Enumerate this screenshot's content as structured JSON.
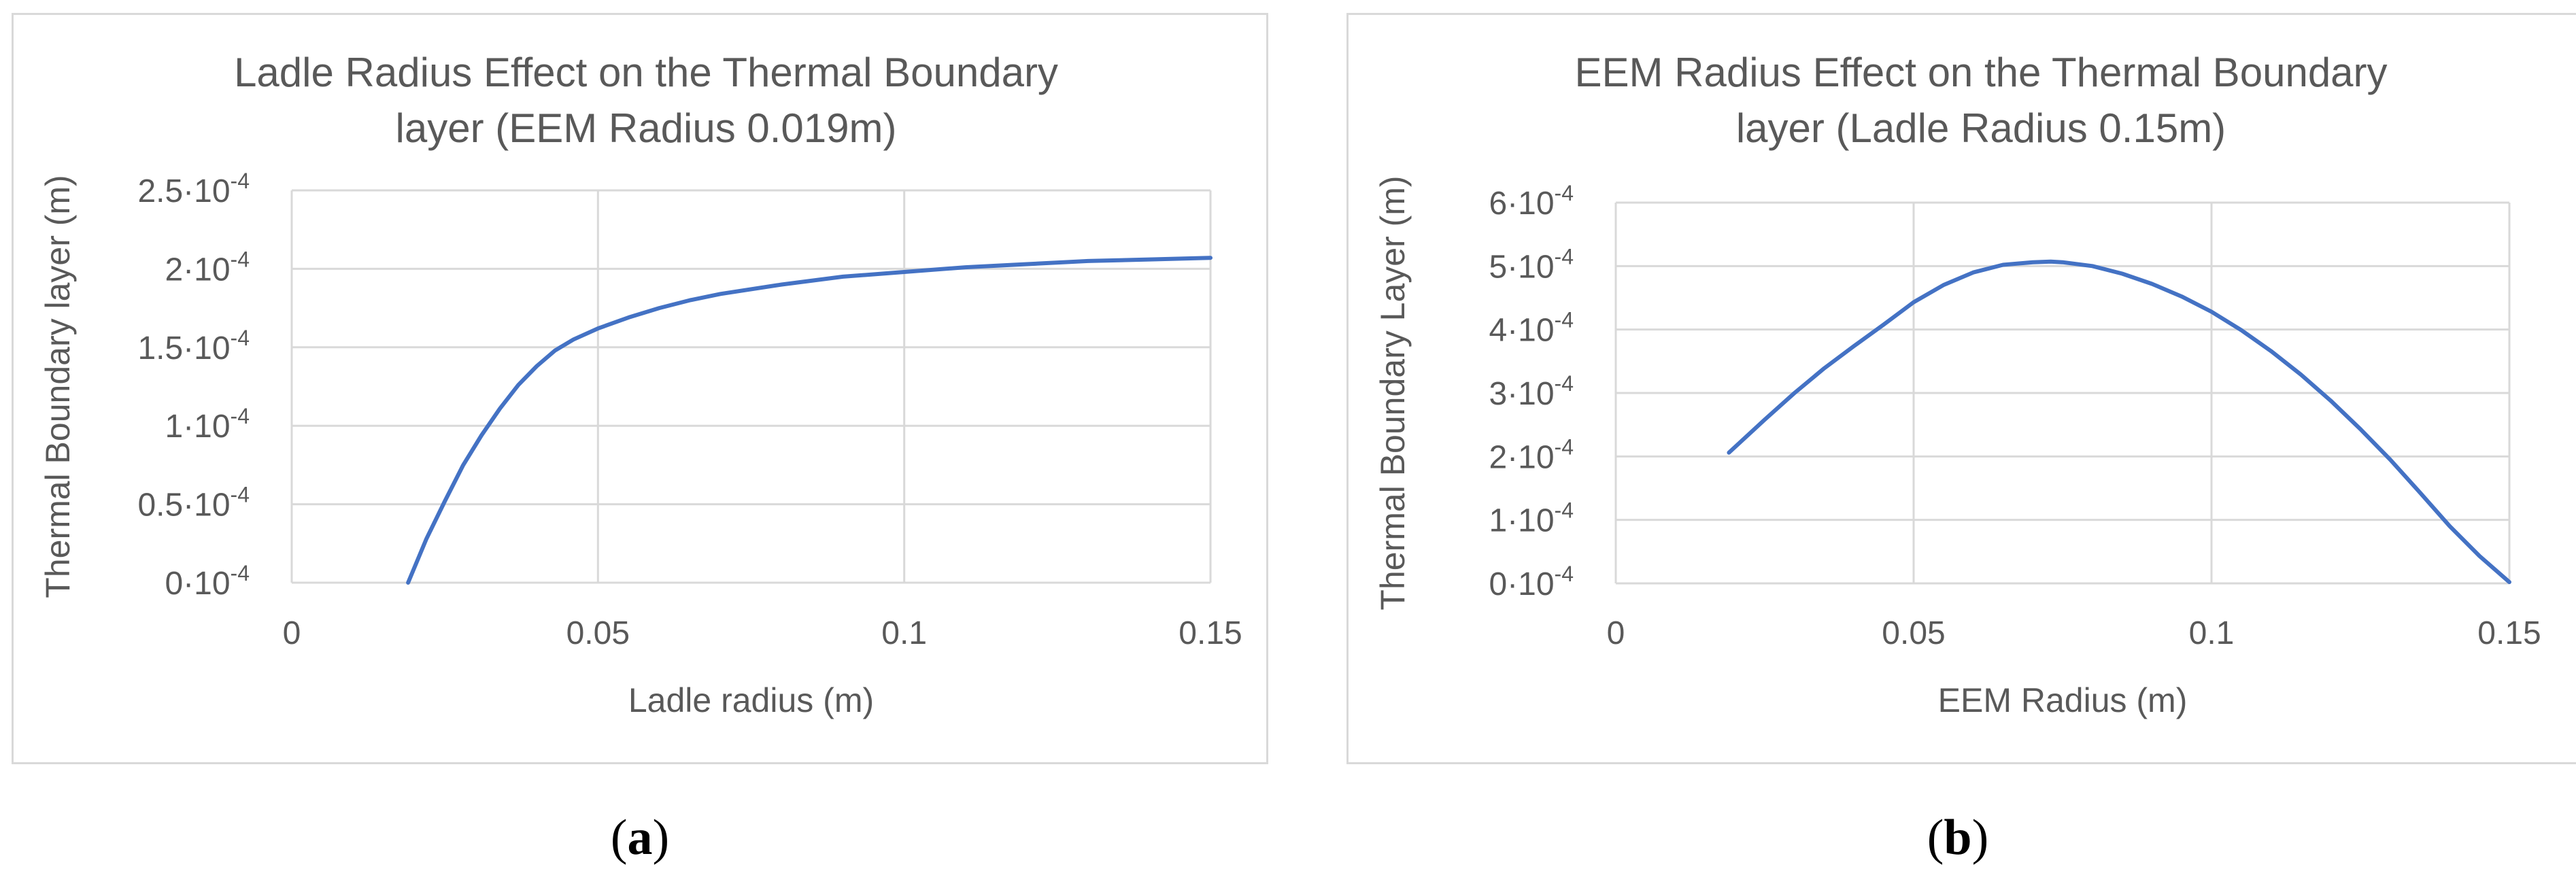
{
  "chart_data": [
    {
      "id": "a",
      "type": "line",
      "title_lines": [
        "Ladle Radius Effect on the Thermal Boundary",
        "layer (EEM Radius 0.019m)"
      ],
      "xlabel": "Ladle radius (m)",
      "ylabel": "Thermal Boundary layer  (m)",
      "xlim": [
        0,
        0.15
      ],
      "ylim": [
        0,
        0.00025
      ],
      "x_ticks": [
        0,
        0.05,
        0.1,
        0.15
      ],
      "x_tick_labels": [
        "0",
        "0.05",
        "0.1",
        "0.15"
      ],
      "y_ticks": [
        0,
        5e-05,
        0.0001,
        0.00015,
        0.0002,
        0.00025
      ],
      "y_tick_labels": [
        "0·10",
        "0.5·10",
        "1·10",
        "1.5·10",
        "2·10",
        "2.5·10"
      ],
      "y_tick_exp": "-4",
      "grid": true,
      "line_color": "#4472c4",
      "series": [
        {
          "x": [
            0.019,
            0.022,
            0.025,
            0.028,
            0.031,
            0.034,
            0.037,
            0.04,
            0.043,
            0.046,
            0.05,
            0.055,
            0.06,
            0.065,
            0.07,
            0.08,
            0.09,
            0.1,
            0.11,
            0.12,
            0.13,
            0.14,
            0.15
          ],
          "y": [
            0,
            2.8e-05,
            5.2e-05,
            7.5e-05,
            9.4e-05,
            0.000111,
            0.000126,
            0.000138,
            0.000148,
            0.000155,
            0.000162,
            0.000169,
            0.000175,
            0.00018,
            0.000184,
            0.00019,
            0.000195,
            0.000198,
            0.000201,
            0.000203,
            0.000205,
            0.000206,
            0.000207
          ]
        }
      ]
    },
    {
      "id": "b",
      "type": "line",
      "title_lines": [
        "EEM Radius Effect on the Thermal Boundary",
        "layer (Ladle Radius 0.15m)"
      ],
      "xlabel": "EEM Radius (m)",
      "ylabel": "Thermal Boundary Layer  (m)",
      "xlim": [
        0,
        0.15
      ],
      "ylim": [
        0,
        0.0006
      ],
      "x_ticks": [
        0,
        0.05,
        0.1,
        0.15
      ],
      "x_tick_labels": [
        "0",
        "0.05",
        "0.1",
        "0.15"
      ],
      "y_ticks": [
        0,
        0.0001,
        0.0002,
        0.0003,
        0.0004,
        0.0005,
        0.0006
      ],
      "y_tick_labels": [
        "0·10",
        "1·10",
        "2·10",
        "3·10",
        "4·10",
        "5·10",
        "6·10"
      ],
      "y_tick_exp": "-4",
      "grid": true,
      "line_color": "#4472c4",
      "series": [
        {
          "x": [
            0.019,
            0.025,
            0.03,
            0.035,
            0.04,
            0.045,
            0.05,
            0.055,
            0.06,
            0.065,
            0.07,
            0.073,
            0.075,
            0.08,
            0.085,
            0.09,
            0.095,
            0.1,
            0.105,
            0.11,
            0.115,
            0.12,
            0.125,
            0.13,
            0.135,
            0.14,
            0.145,
            0.15
          ],
          "y": [
            0.000206,
            0.000258,
            0.0003,
            0.000339,
            0.000374,
            0.000408,
            0.000443,
            0.00047,
            0.00049,
            0.000502,
            0.000506,
            0.000507,
            0.000506,
            0.0005,
            0.000488,
            0.000472,
            0.000452,
            0.000428,
            0.000399,
            0.000366,
            0.000329,
            0.000288,
            0.000243,
            0.000195,
            0.000143,
            9e-05,
            4.3e-05,
            2e-06
          ]
        }
      ]
    }
  ],
  "captions": [
    {
      "open": "(",
      "letter": "a",
      "close": ")"
    },
    {
      "open": "(",
      "letter": "b",
      "close": ")"
    }
  ]
}
